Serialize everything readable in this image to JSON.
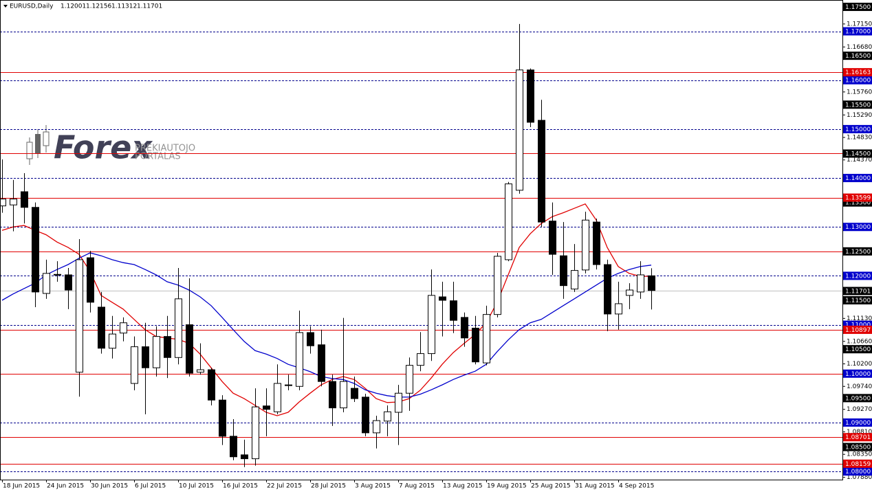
{
  "chart_data": {
    "type": "candlestick",
    "title": "EURUSD,Daily",
    "categories": [
      "18 Jun 2015",
      null,
      null,
      null,
      "24 Jun 2015",
      null,
      null,
      null,
      "30 Jun 2015",
      null,
      null,
      null,
      "6 Jul 2015",
      null,
      null,
      null,
      "10 Jul 2015",
      null,
      null,
      null,
      "16 Jul 2015",
      null,
      null,
      null,
      "22 Jul 2015",
      null,
      null,
      null,
      "28 Jul 2015",
      null,
      null,
      null,
      "3 Aug 2015",
      null,
      null,
      null,
      "7 Aug 2015",
      null,
      null,
      null,
      "13 Aug 2015",
      null,
      null,
      null,
      "19 Aug 2015",
      null,
      null,
      null,
      "25 Aug 2015",
      null,
      null,
      null,
      "31 Aug 2015",
      null,
      null,
      null,
      "4 Sep 2015",
      null,
      null,
      null
    ],
    "open": [
      1.1343,
      1.1345,
      1.1372,
      1.134,
      1.1164,
      1.1202,
      1.1202,
      1.1003,
      1.1237,
      1.1136,
      1.1052,
      1.1083,
      1.098,
      1.1055,
      1.1012,
      1.1076,
      1.1033,
      1.11,
      1.1003,
      1.1008,
      1.0946,
      1.0872,
      1.0834,
      1.0826,
      1.0934,
      1.0922,
      1.0977,
      1.0974,
      1.1084,
      1.1059,
      1.0984,
      1.093,
      1.097,
      1.0952,
      1.0879,
      1.0903,
      1.0921,
      1.096,
      1.1017,
      1.1041,
      1.1157,
      1.1149,
      1.1115,
      1.1093,
      1.1022,
      1.1121,
      1.1233,
      1.1375,
      1.1621,
      1.1518,
      1.1312,
      1.1241,
      1.1173,
      1.1212,
      1.131,
      1.1223,
      1.1122,
      1.116,
      1.1167,
      1.12001
    ],
    "high": [
      1.1438,
      1.1396,
      1.141,
      1.135,
      1.1233,
      1.123,
      1.1216,
      1.1275,
      1.1251,
      1.1167,
      1.1118,
      1.1115,
      1.1076,
      1.1104,
      1.1097,
      1.1118,
      1.1216,
      1.1195,
      1.1062,
      1.1012,
      1.0956,
      1.0907,
      1.0865,
      1.097,
      1.097,
      1.1019,
      1.0998,
      1.1129,
      1.1097,
      1.109,
      1.0998,
      1.1114,
      1.0994,
      1.0959,
      1.0914,
      1.0935,
      1.0977,
      1.1033,
      1.1085,
      1.1213,
      1.1188,
      1.1188,
      1.1125,
      1.1118,
      1.1139,
      1.1247,
      1.1392,
      1.1715,
      1.1624,
      1.156,
      1.135,
      1.131,
      1.1265,
      1.1331,
      1.1317,
      1.1233,
      1.1188,
      1.1185,
      1.123,
      1.12156
    ],
    "low": [
      1.1329,
      1.1291,
      1.1307,
      1.1136,
      1.1153,
      1.1188,
      1.1132,
      1.0953,
      1.1125,
      1.1041,
      1.1031,
      1.1066,
      1.0966,
      1.0917,
      1.0994,
      1.0991,
      1.1019,
      1.0994,
      1.0998,
      1.0935,
      1.0854,
      1.0823,
      1.0809,
      1.0812,
      1.0872,
      1.0917,
      1.0966,
      1.0966,
      1.1041,
      1.0974,
      1.0893,
      1.0921,
      1.0942,
      1.0872,
      1.0847,
      1.0872,
      1.0854,
      1.0924,
      1.1005,
      1.1026,
      1.1076,
      1.1083,
      1.1055,
      1.1019,
      1.1017,
      1.1115,
      1.123,
      1.1368,
      1.1504,
      1.13,
      1.1202,
      1.1153,
      1.1167,
      1.1205,
      1.1213,
      1.1087,
      1.109,
      1.1132,
      1.1153,
      1.11312
    ],
    "close": [
      1.1357,
      1.1357,
      1.134,
      1.1167,
      1.1205,
      1.1203,
      1.1171,
      1.1233,
      1.1146,
      1.1052,
      1.1081,
      1.1104,
      1.1055,
      1.1012,
      1.1076,
      1.1033,
      1.1153,
      1.1001,
      1.1008,
      1.0946,
      1.0872,
      1.083,
      1.0826,
      1.0932,
      1.0927,
      1.098,
      1.0976,
      1.1084,
      1.1057,
      1.0984,
      1.093,
      1.0984,
      1.0949,
      1.0879,
      1.0904,
      1.0922,
      1.096,
      1.1017,
      1.1041,
      1.116,
      1.115,
      1.1109,
      1.1073,
      1.1024,
      1.1121,
      1.124,
      1.1388,
      1.1621,
      1.1514,
      1.131,
      1.1244,
      1.118,
      1.1211,
      1.1314,
      1.1223,
      1.1122,
      1.1143,
      1.1171,
      1.1202,
      1.11701
    ],
    "series": [
      {
        "color": "#e00000",
        "values": [
          1.1293,
          1.13,
          1.1303,
          1.1293,
          1.1284,
          1.1269,
          1.1258,
          1.1244,
          1.1209,
          1.116,
          1.1146,
          1.1132,
          1.1111,
          1.109,
          1.1076,
          1.1073,
          1.107,
          1.1062,
          1.104,
          1.1012,
          1.0984,
          1.096,
          1.0949,
          1.0935,
          1.0921,
          1.0914,
          1.0921,
          1.0942,
          1.096,
          1.0977,
          1.0988,
          1.0994,
          1.0988,
          1.097,
          1.0949,
          1.0941,
          1.0942,
          1.0949,
          1.0966,
          1.0991,
          1.1019,
          1.1043,
          1.1062,
          1.108,
          1.1104,
          1.1146,
          1.1202,
          1.1258,
          1.1286,
          1.1307,
          1.1321,
          1.1329,
          1.1338,
          1.1347,
          1.1314,
          1.1258,
          1.1219,
          1.1205,
          1.1199,
          1.1199
        ]
      },
      {
        "color": "#0000cc",
        "values": [
          1.115,
          1.1163,
          1.1174,
          1.1185,
          1.1202,
          1.1213,
          1.1223,
          1.1236,
          1.1247,
          1.1241,
          1.1233,
          1.1227,
          1.1223,
          1.1213,
          1.1202,
          1.1188,
          1.1181,
          1.1171,
          1.1157,
          1.1139,
          1.1115,
          1.109,
          1.1066,
          1.1047,
          1.104,
          1.1031,
          1.1019,
          1.1012,
          1.1004,
          1.0994,
          1.099,
          1.0988,
          1.098,
          1.0967,
          1.096,
          1.0955,
          1.0952,
          1.0952,
          1.0958,
          1.0967,
          1.0977,
          1.0988,
          1.0997,
          1.1005,
          1.1019,
          1.1045,
          1.1069,
          1.109,
          1.1104,
          1.1111,
          1.1125,
          1.1139,
          1.1153,
          1.1167,
          1.1181,
          1.1195,
          1.1205,
          1.1213,
          1.1219,
          1.1222
        ]
      }
    ],
    "ylim": [
      1.07833,
      1.1764
    ],
    "yticks": [
      {
        "value": 1.1715,
        "label": "1.17150"
      },
      {
        "value": 1.1668,
        "label": "1.16680"
      },
      {
        "value": 1.1576,
        "label": "1.15760"
      },
      {
        "value": 1.1529,
        "label": "1.15290"
      },
      {
        "value": 1.1483,
        "label": "1.14830"
      },
      {
        "value": 1.1437,
        "label": "1.14370"
      },
      {
        "value": 1.1113,
        "label": "1.11130"
      },
      {
        "value": 1.1066,
        "label": "1.10660"
      },
      {
        "value": 1.102,
        "label": "1.10200"
      },
      {
        "value": 1.0974,
        "label": "1.09740"
      },
      {
        "value": 1.0927,
        "label": "1.09270"
      },
      {
        "value": 1.0881,
        "label": "1.08810"
      },
      {
        "value": 1.0835,
        "label": "1.08350"
      },
      {
        "value": 1.0788,
        "label": "1.07880"
      }
    ],
    "blue_levels": [
      {
        "value": 1.17,
        "label": "1.17000"
      },
      {
        "value": 1.16,
        "label": "1.16000"
      },
      {
        "value": 1.15,
        "label": "1.15000"
      },
      {
        "value": 1.14,
        "label": "1.14000"
      },
      {
        "value": 1.13,
        "label": "1.13000"
      },
      {
        "value": 1.12,
        "label": "1.12000"
      },
      {
        "value": 1.11,
        "label": "1.11000"
      },
      {
        "value": 1.1,
        "label": "1.10000"
      },
      {
        "value": 1.09,
        "label": "1.09000"
      },
      {
        "value": 1.08,
        "label": "1.08000"
      }
    ],
    "red_lines": [
      1.16163,
      1.145,
      1.13599,
      1.125,
      1.10897,
      1.1,
      1.08701,
      1.08159
    ],
    "red_labels": [
      {
        "value": 1.16163,
        "label": "1.16163"
      },
      {
        "value": 1.13599,
        "label": "1.13599"
      },
      {
        "value": 1.10897,
        "label": "1.10897"
      },
      {
        "value": 1.08701,
        "label": "1.08701"
      },
      {
        "value": 1.08159,
        "label": "1.08159"
      }
    ],
    "black_labels": [
      {
        "value": 1.175,
        "label": "1.17500"
      },
      {
        "value": 1.165,
        "label": "1.16500"
      },
      {
        "value": 1.155,
        "label": "1.15500"
      },
      {
        "value": 1.145,
        "label": "1.14500"
      },
      {
        "value": 1.135,
        "label": "1.13500"
      },
      {
        "value": 1.125,
        "label": "1.12500"
      },
      {
        "value": 1.115,
        "label": "1.11500"
      },
      {
        "value": 1.105,
        "label": "1.10500"
      },
      {
        "value": 1.095,
        "label": "1.09500"
      },
      {
        "value": 1.085,
        "label": "1.08500"
      }
    ]
  },
  "watermark": {
    "brand": "Forex",
    "line1": "PREKIAUTOJO",
    "line2": "PORTALAS"
  }
}
